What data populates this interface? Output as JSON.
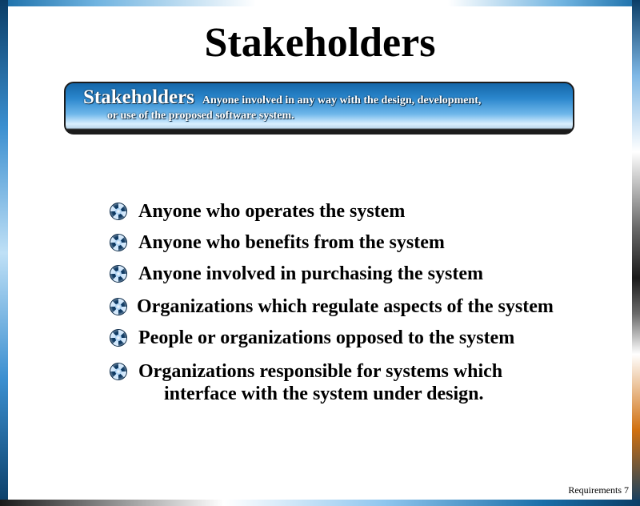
{
  "slide": {
    "title": "Stakeholders",
    "definition": {
      "term": "Stakeholders",
      "line1": "Anyone involved in any way with the design, development,",
      "line2": "or use of the proposed software system."
    },
    "bullets": [
      {
        "text": "Anyone who operates the system"
      },
      {
        "text": "Anyone who benefits from the system"
      },
      {
        "text": "Anyone involved in purchasing the system"
      },
      {
        "text": "Organizations which regulate aspects of the system"
      },
      {
        "text": "People or organizations opposed to the system"
      },
      {
        "text": "Organizations responsible for systems which",
        "continuation": "interface with the system under design."
      }
    ],
    "footer": "Requirements 7",
    "colors": {
      "banner_blue": "#2a86cc",
      "banner_dark": "#1c1c1c",
      "bullet_icon": "#0f3a63"
    },
    "bullet_icon_name": "globe-bullet-icon"
  }
}
